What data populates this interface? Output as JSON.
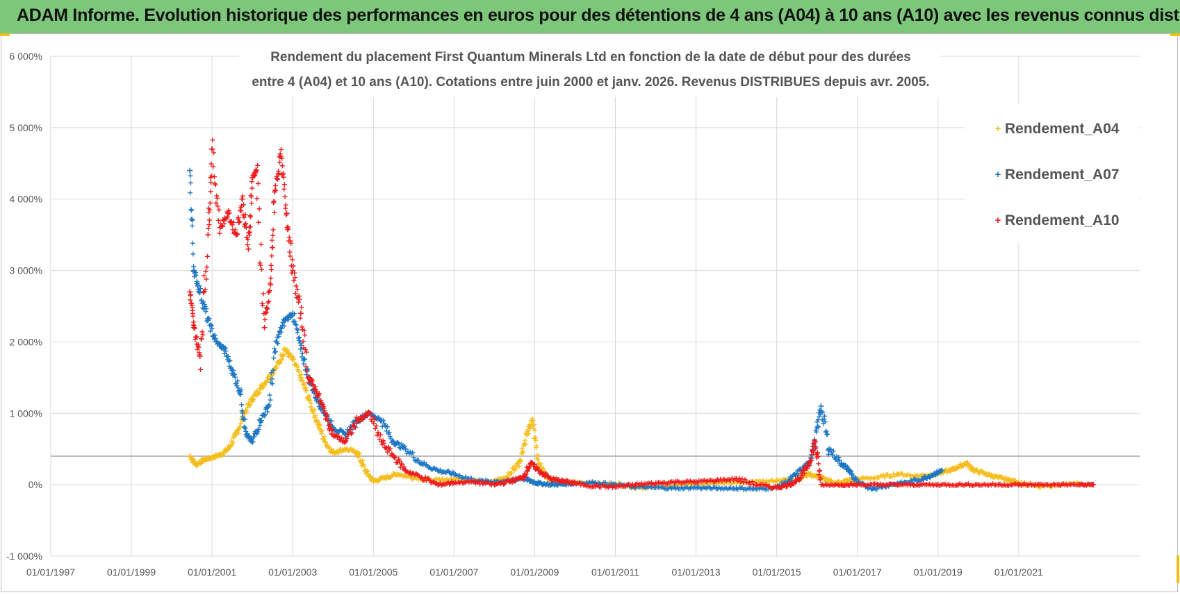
{
  "banner": {
    "title": "ADAM Informe. Evolution historique des performances en euros pour des détentions de 4 ans (A04) à 10 ans (A10) avec les revenus connus distribués"
  },
  "colors": {
    "banner_bg": "#7dc77a",
    "corner_accent": "#f2c118",
    "A04": "#f5be1e",
    "A07": "#1f77c4",
    "A10": "#ee1c1c",
    "grid": "#d9d9d9"
  },
  "chart_data": {
    "type": "scatter",
    "title_lines": [
      "Rendement du placement First Quantum Minerals Ltd en fonction de la date de début pour des durées",
      "entre 4 (A04) et 10 ans (A10). Cotations entre juin 2000 et janv. 2026. Revenus DISTRIBUES depuis avr. 2005."
    ],
    "xlabel": "",
    "ylabel": "",
    "xlim": [
      1997.0,
      2024.0
    ],
    "ylim": [
      -1000,
      6000
    ],
    "y_ticks": [
      -1000,
      0,
      1000,
      2000,
      3000,
      4000,
      5000,
      6000
    ],
    "y_tick_labels": [
      "-1 000%",
      "0%",
      "1 000%",
      "2 000%",
      "3 000%",
      "4 000%",
      "5 000%",
      "6 000%"
    ],
    "x_ticks": [
      1997,
      1999,
      2001,
      2003,
      2005,
      2007,
      2009,
      2011,
      2013,
      2015,
      2017,
      2019,
      2021
    ],
    "x_tick_labels": [
      "01/01/1997",
      "01/01/1999",
      "01/01/2001",
      "01/01/2003",
      "01/01/2005",
      "01/01/2007",
      "01/01/2009",
      "01/01/2011",
      "01/01/2013",
      "01/01/2015",
      "01/01/2017",
      "01/01/2019",
      "01/01/2021"
    ],
    "reference_line_y": 400,
    "legend_position": "top-right",
    "grid": true,
    "series": [
      {
        "name": "Rendement_A04",
        "x": [
          2000.45,
          2000.6,
          2000.8,
          2001.0,
          2001.2,
          2001.4,
          2001.6,
          2001.8,
          2002.0,
          2002.2,
          2002.4,
          2002.6,
          2002.8,
          2003.0,
          2003.2,
          2003.4,
          2003.6,
          2003.8,
          2004.0,
          2004.3,
          2004.6,
          2004.8,
          2005.0,
          2005.3,
          2005.6,
          2006.0,
          2006.5,
          2007.0,
          2007.5,
          2008.0,
          2008.3,
          2008.6,
          2008.8,
          2008.95,
          2009.1,
          2009.3,
          2009.6,
          2010.0,
          2010.5,
          2011.0,
          2011.5,
          2012.0,
          2012.5,
          2013.0,
          2013.5,
          2014.0,
          2014.5,
          2015.0,
          2015.5,
          2015.8,
          2016.1,
          2016.4,
          2016.7,
          2017.0,
          2017.5,
          2018.0,
          2018.5,
          2019.0,
          2019.3,
          2019.5,
          2019.7,
          2019.9,
          2020.2,
          2020.5,
          2020.8,
          2021.0,
          2021.5,
          2022.0,
          2022.5
        ],
        "y": [
          400,
          280,
          350,
          380,
          420,
          500,
          700,
          1000,
          1200,
          1350,
          1500,
          1650,
          1900,
          1750,
          1500,
          1200,
          900,
          600,
          450,
          500,
          450,
          200,
          50,
          100,
          150,
          100,
          60,
          80,
          60,
          50,
          100,
          300,
          700,
          900,
          300,
          100,
          50,
          30,
          20,
          10,
          -50,
          -20,
          0,
          10,
          20,
          30,
          40,
          60,
          80,
          150,
          100,
          20,
          50,
          80,
          100,
          150,
          120,
          160,
          200,
          250,
          300,
          200,
          150,
          100,
          60,
          30,
          -30,
          0,
          10
        ]
      },
      {
        "name": "Rendement_A07",
        "x": [
          2000.45,
          2000.55,
          2000.7,
          2000.9,
          2001.1,
          2001.3,
          2001.5,
          2001.7,
          2001.85,
          2002.0,
          2002.2,
          2002.4,
          2002.6,
          2002.8,
          2003.0,
          2003.2,
          2003.4,
          2003.6,
          2003.8,
          2004.0,
          2004.3,
          2004.6,
          2004.9,
          2005.2,
          2005.5,
          2005.8,
          2006.2,
          2006.6,
          2007.0,
          2007.5,
          2008.0,
          2008.4,
          2008.7,
          2008.9,
          2009.1,
          2009.4,
          2009.7,
          2010.0,
          2010.5,
          2011.0,
          2011.5,
          2012.0,
          2012.5,
          2013.0,
          2013.5,
          2014.0,
          2014.5,
          2015.0,
          2015.3,
          2015.6,
          2015.8,
          2015.95,
          2016.1,
          2016.3,
          2016.6,
          2016.8,
          2017.0,
          2017.4,
          2017.8,
          2018.2,
          2018.6,
          2018.9,
          2019.1
        ],
        "y": [
          4400,
          3000,
          2700,
          2300,
          2000,
          1900,
          1600,
          1300,
          700,
          600,
          900,
          1100,
          2000,
          2300,
          2400,
          1900,
          1500,
          1200,
          1000,
          800,
          700,
          900,
          1000,
          900,
          600,
          500,
          300,
          200,
          150,
          60,
          40,
          50,
          100,
          50,
          20,
          0,
          10,
          20,
          30,
          0,
          -30,
          -40,
          -50,
          -40,
          -50,
          -50,
          -60,
          -40,
          50,
          200,
          300,
          600,
          1100,
          500,
          300,
          200,
          20,
          -50,
          0,
          30,
          80,
          150,
          200
        ]
      },
      {
        "name": "Rendement_A10",
        "x": [
          2000.45,
          2000.55,
          2000.7,
          2000.9,
          2001.0,
          2001.2,
          2001.4,
          2001.6,
          2001.75,
          2001.9,
          2002.0,
          2002.1,
          2002.3,
          2002.45,
          2002.55,
          2002.7,
          2002.85,
          2003.0,
          2003.2,
          2003.4,
          2003.6,
          2003.8,
          2004.0,
          2004.3,
          2004.6,
          2004.9,
          2005.2,
          2005.5,
          2005.8,
          2006.2,
          2006.6,
          2007.0,
          2007.5,
          2008.0,
          2008.4,
          2008.7,
          2008.9,
          2009.1,
          2009.4,
          2009.7,
          2010.0,
          2010.5,
          2011.0,
          2011.5,
          2012.0,
          2012.5,
          2013.0,
          2013.5,
          2014.0,
          2014.5,
          2015.0,
          2015.3,
          2015.6,
          2015.8,
          2015.95,
          2016.1,
          2016.6,
          2017.0,
          2017.5,
          2018.0,
          2018.5,
          2019.0,
          2019.5,
          2020.0,
          2020.5,
          2021.0,
          2021.5,
          2022.0,
          2022.5,
          2022.85
        ],
        "y": [
          2700,
          2200,
          1800,
          3500,
          4700,
          3600,
          3800,
          3500,
          4000,
          3300,
          4300,
          4400,
          2200,
          2800,
          4100,
          4600,
          3800,
          3000,
          2400,
          1500,
          1300,
          1000,
          700,
          600,
          900,
          1000,
          600,
          400,
          200,
          100,
          0,
          30,
          40,
          0,
          50,
          100,
          300,
          200,
          80,
          50,
          20,
          -20,
          -30,
          0,
          20,
          40,
          40,
          60,
          80,
          0,
          -40,
          0,
          100,
          300,
          600,
          0,
          0,
          0,
          0,
          0,
          0,
          0,
          0,
          0,
          0,
          0,
          0,
          0,
          0,
          0
        ]
      }
    ]
  }
}
